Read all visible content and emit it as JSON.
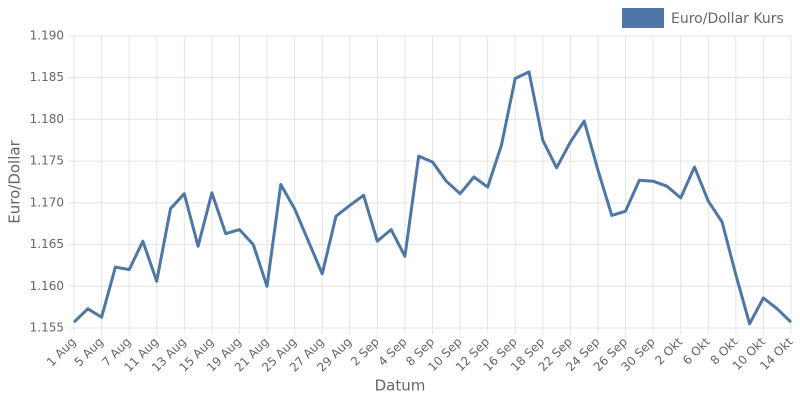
{
  "chart_data": {
    "type": "line",
    "x_label": "Datum",
    "y_label": "Euro/Dollar",
    "categories": [
      "1 Aug",
      null,
      "5 Aug",
      null,
      "7 Aug",
      null,
      "11 Aug",
      null,
      "13 Aug",
      null,
      "15 Aug",
      null,
      "19 Aug",
      null,
      "21 Aug",
      null,
      "25 Aug",
      null,
      "27 Aug",
      null,
      "29 Aug",
      null,
      "2 Sep",
      null,
      "4 Sep",
      null,
      "8 Sep",
      null,
      "10 Sep",
      null,
      "12 Sep",
      null,
      "16 Sep",
      null,
      "18 Sep",
      null,
      "22 Sep",
      null,
      "24 Sep",
      null,
      "26 Sep",
      null,
      "30 Sep",
      null,
      "2 Okt",
      null,
      "6 Okt",
      null,
      "8 Okt",
      null,
      "10 Okt",
      null,
      "14 Okt"
    ],
    "series": [
      {
        "name": "Euro/Dollar Kurs",
        "color": "#4e77a6",
        "values": [
          1.1557,
          1.1573,
          1.1563,
          1.1623,
          1.162,
          1.1654,
          1.1606,
          1.1693,
          1.1711,
          1.1648,
          1.1712,
          1.1663,
          1.1668,
          1.165,
          1.16,
          1.1722,
          1.1693,
          1.1654,
          1.1615,
          1.1684,
          1.1697,
          1.1709,
          1.1654,
          1.1668,
          1.1636,
          1.1756,
          1.1749,
          1.1726,
          1.1711,
          1.1731,
          1.1719,
          1.1769,
          1.1849,
          1.1857,
          1.1775,
          1.1742,
          1.1773,
          1.1798,
          1.1739,
          1.1685,
          1.169,
          1.1727,
          1.1726,
          1.172,
          1.1706,
          1.1743,
          1.1702,
          1.1677,
          1.1614,
          1.1555,
          1.1586,
          1.1573,
          1.1557
        ]
      }
    ],
    "ylim": [
      1.155,
      1.19
    ],
    "yticks": [
      1.155,
      {
        "value": 1.16,
        "label": "1.160"
      },
      1.165,
      {
        "value": 1.17,
        "label": "1.170"
      },
      1.175,
      {
        "value": 1.18,
        "label": "1.180"
      },
      1.185,
      {
        "value": 1.19,
        "label": "1.190"
      }
    ],
    "grid": true,
    "legend": "top-right"
  }
}
